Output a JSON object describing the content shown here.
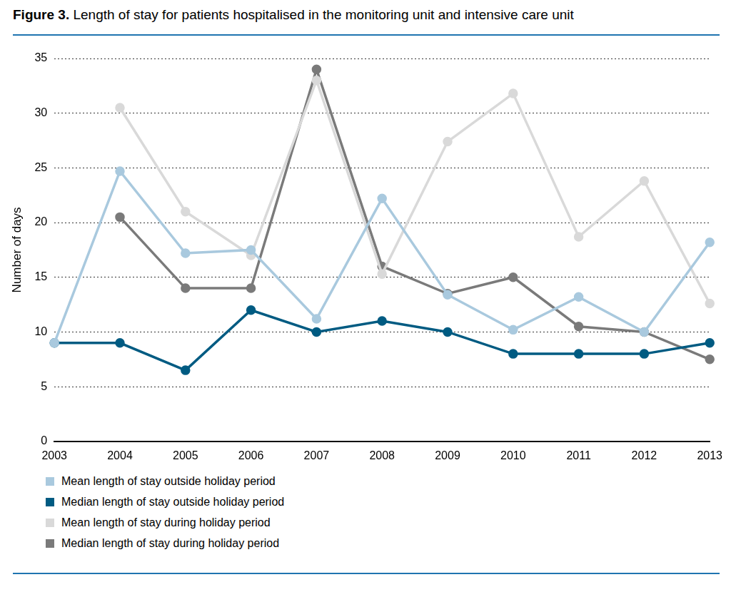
{
  "chart_data": {
    "type": "line",
    "title": "Figure 3. Length of stay for patients hospitalised in the monitoring unit and intensive care unit",
    "y_label": "Number of days",
    "categories": [
      "2003",
      "2004",
      "2005",
      "2006",
      "2007",
      "2008",
      "2009",
      "2010",
      "2011",
      "2012",
      "2013"
    ],
    "series": [
      {
        "name": "Mean length of stay outside holiday period",
        "color": "#a9c9de",
        "marker": "circle",
        "values": [
          9,
          24.7,
          17.2,
          17.5,
          11.2,
          22.2,
          13.4,
          10.2,
          13.2,
          10,
          18.2
        ]
      },
      {
        "name": "Median length of stay outside holiday period",
        "color": "#005b82",
        "marker": "circle",
        "values": [
          9,
          9,
          6.5,
          12,
          10,
          11,
          10,
          8,
          8,
          8,
          9
        ]
      },
      {
        "name": "Mean length of stay during holiday period",
        "color": "#d9d9d9",
        "marker": "circle",
        "values": [
          null,
          30.5,
          21,
          17,
          33,
          15.3,
          27.4,
          31.8,
          18.7,
          23.8,
          12.6
        ]
      },
      {
        "name": "Median length of stay during holiday period",
        "color": "#7a7a7a",
        "marker": "circle",
        "values": [
          null,
          20.5,
          14,
          14,
          34,
          16,
          13.5,
          15,
          10.5,
          10,
          7.5
        ]
      }
    ],
    "ylim": [
      0,
      35
    ],
    "yticks": [
      0,
      5,
      10,
      15,
      20,
      25,
      30,
      35
    ],
    "grid": true,
    "legend": "bottom"
  }
}
